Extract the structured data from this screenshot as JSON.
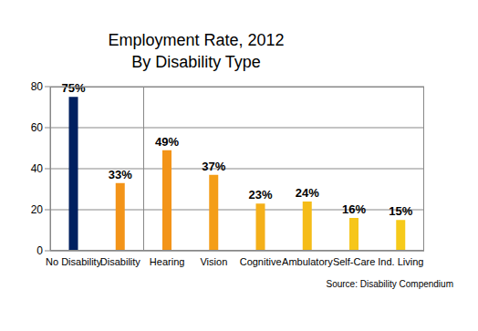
{
  "chart_data": {
    "type": "bar",
    "title": "Employment Rate, 2012",
    "subtitle": "By Disability Type",
    "annotations": [
      "Source: Disability Compendium"
    ],
    "categories": [
      "No Disability",
      "Disability",
      "Hearing",
      "Vision",
      "Cognitive",
      "Ambulatory",
      "Self-Care",
      "Ind. Living"
    ],
    "values": [
      75,
      33,
      49,
      37,
      23,
      24,
      16,
      15
    ],
    "value_labels": [
      "75%",
      "33%",
      "49%",
      "37%",
      "23%",
      "24%",
      "16%",
      "15%"
    ],
    "colors": [
      "#002060",
      "#f39419",
      "#f39419",
      "#f49e18",
      "#f4b01a",
      "#f5bc18",
      "#f6c61a",
      "#f6ca1a"
    ],
    "ylim": [
      0,
      80
    ],
    "yticks": [
      0,
      20,
      40,
      60,
      80
    ],
    "grid": true,
    "data_labels": true
  }
}
